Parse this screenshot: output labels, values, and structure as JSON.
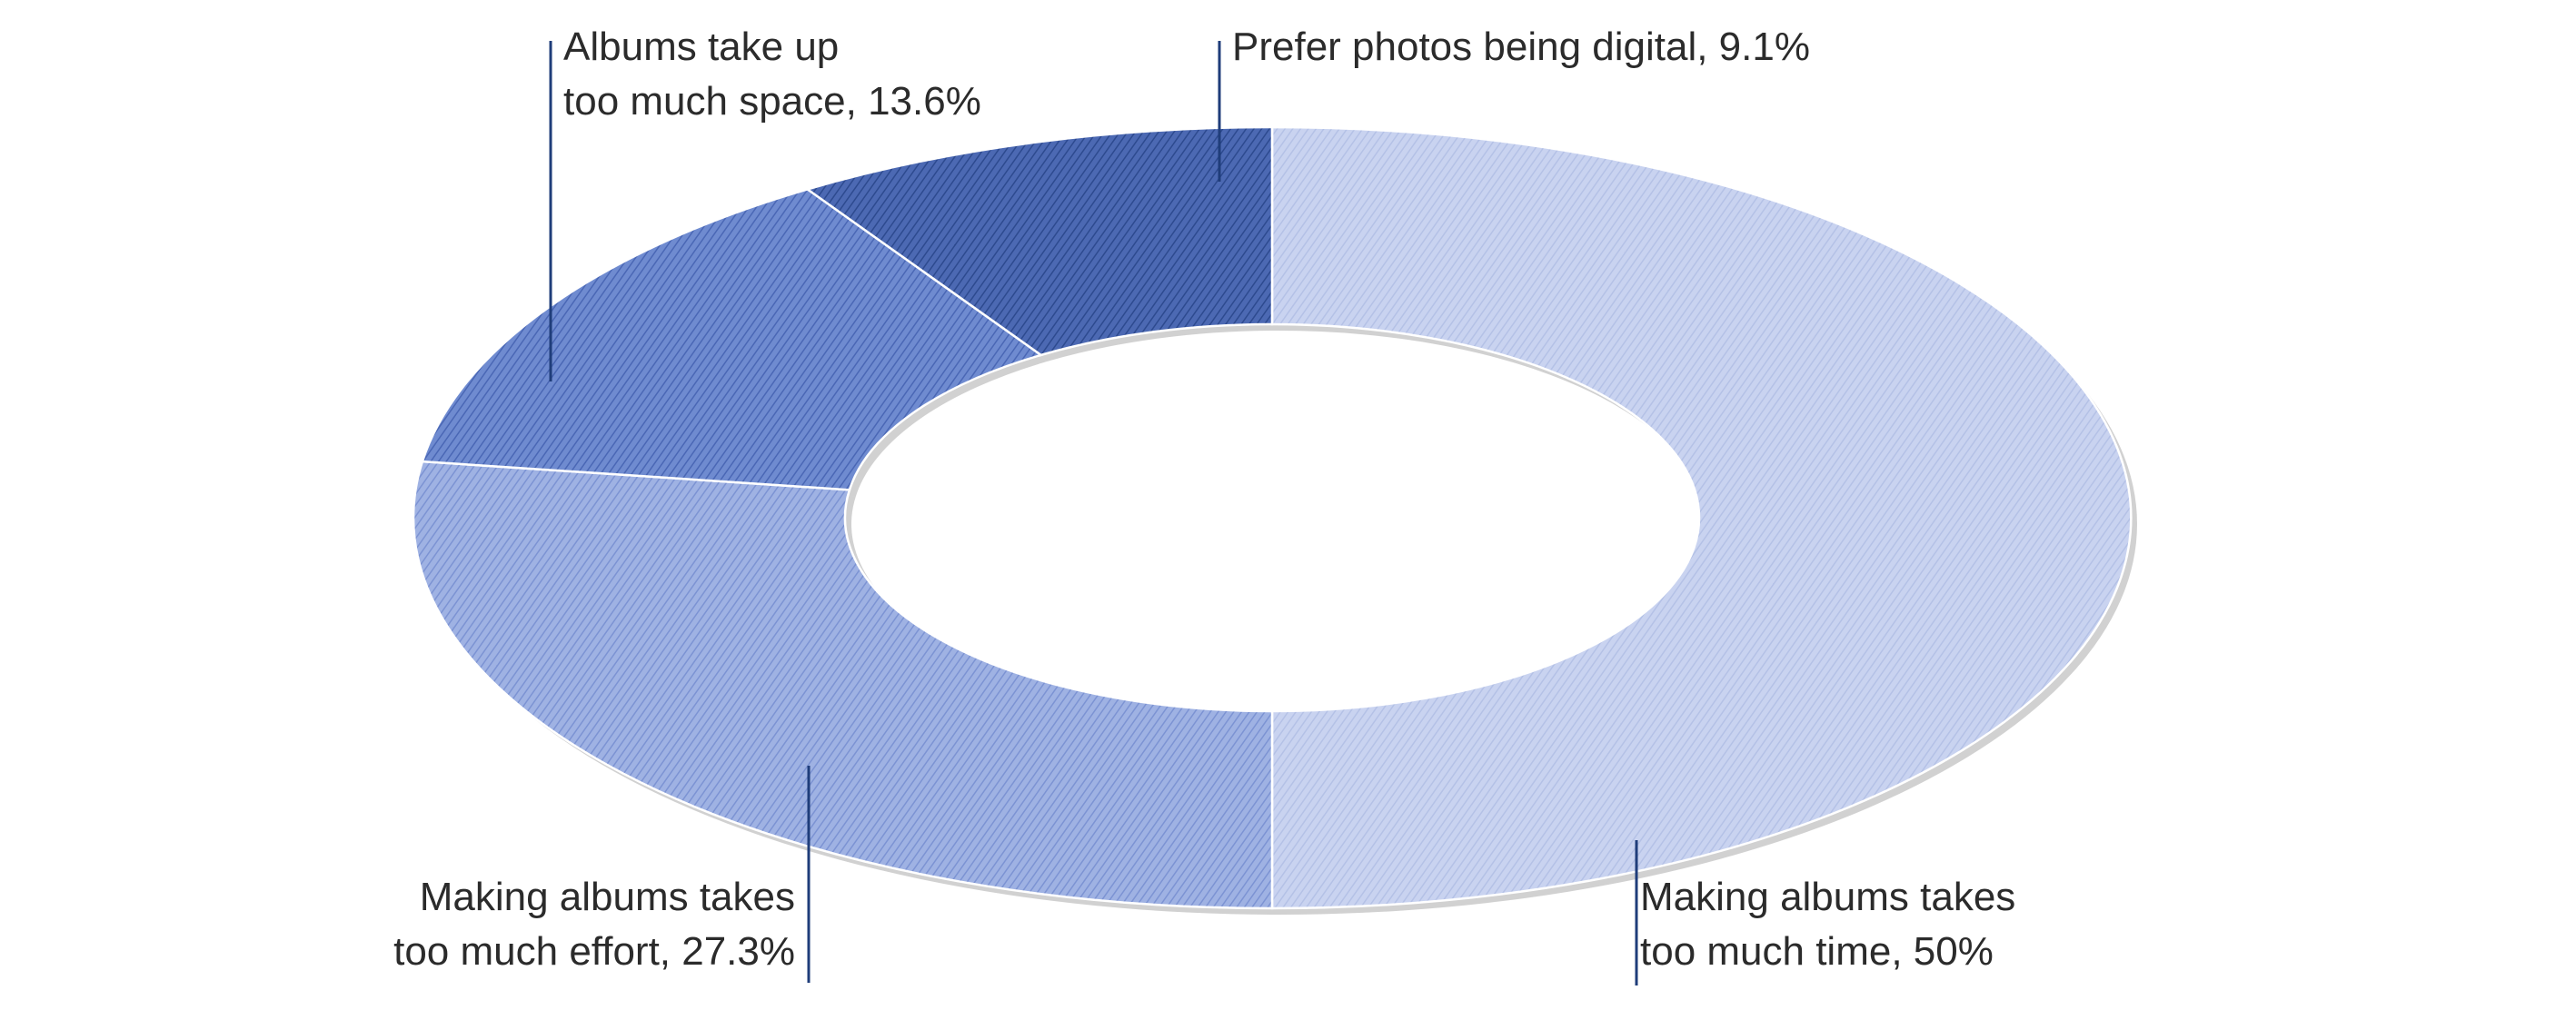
{
  "chart_data": {
    "type": "pie",
    "variant": "donut",
    "title": "",
    "categories": [
      "Making albums takes too much time",
      "Making albums takes too much effort",
      "Albums take up too much space",
      "Prefer photos being digital"
    ],
    "values": [
      50,
      27.3,
      13.6,
      9.1
    ],
    "unit": "%",
    "labels": [
      {
        "line1": "Making albums takes",
        "line2": "too much time, 50%"
      },
      {
        "line1": "Making albums takes",
        "line2": "too much effort, 27.3%"
      },
      {
        "line1": "Albums take up",
        "line2": "too much space, 13.6%"
      },
      {
        "line1": "Prefer photos being digital, 9.1%",
        "line2": ""
      }
    ],
    "colors": [
      "#c9d3f0",
      "#9fb2e3",
      "#6f8bd0",
      "#4c69b3"
    ],
    "hatch_colors": [
      "#b4c1e6",
      "#7c93d3",
      "#4a67b5",
      "#2d4a8f"
    ],
    "leader_color": "#1f3d7a",
    "legend": "none",
    "start_angle": "12 o'clock",
    "direction": "clockwise"
  }
}
